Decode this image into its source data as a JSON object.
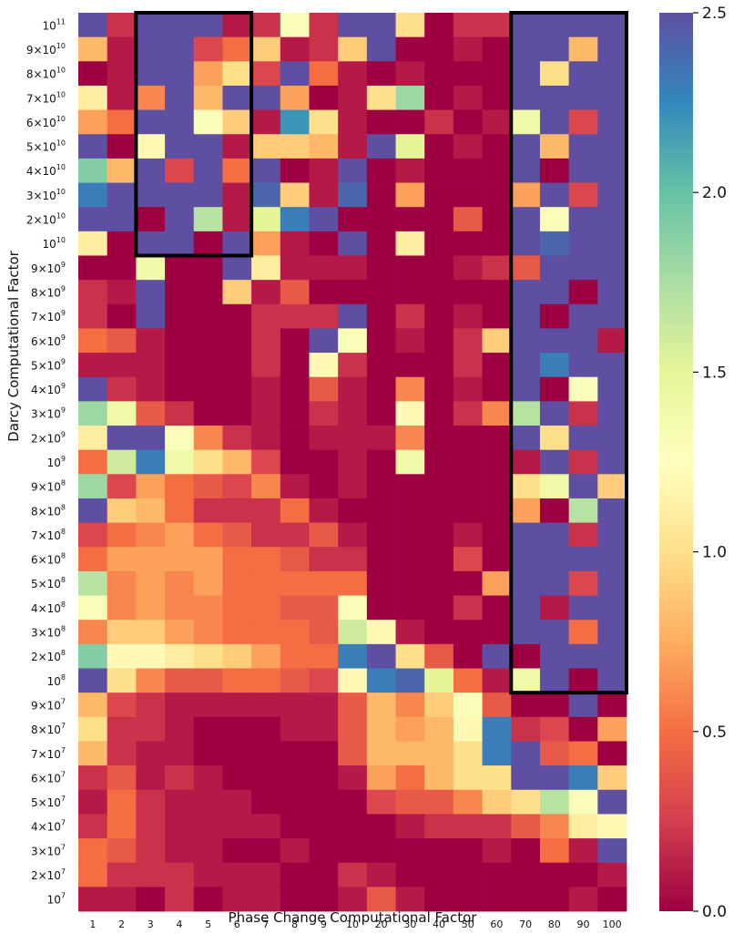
{
  "chart_data": {
    "type": "heatmap",
    "xlabel": "Phase Change Computational Factor",
    "ylabel": "Darcy Computational Factor",
    "x_categories": [
      "1",
      "2",
      "3",
      "4",
      "5",
      "6",
      "7",
      "8",
      "9",
      "10",
      "20",
      "30",
      "40",
      "50",
      "60",
      "70",
      "80",
      "90",
      "100"
    ],
    "y_categories_top_to_bottom": [
      {
        "base": "10",
        "exp": "11"
      },
      {
        "base": "9×10",
        "exp": "10"
      },
      {
        "base": "8×10",
        "exp": "10"
      },
      {
        "base": "7×10",
        "exp": "10"
      },
      {
        "base": "6×10",
        "exp": "10"
      },
      {
        "base": "5×10",
        "exp": "10"
      },
      {
        "base": "4×10",
        "exp": "10"
      },
      {
        "base": "3×10",
        "exp": "10"
      },
      {
        "base": "2×10",
        "exp": "10"
      },
      {
        "base": "10",
        "exp": "10"
      },
      {
        "base": "9×10",
        "exp": "9"
      },
      {
        "base": "8×10",
        "exp": "9"
      },
      {
        "base": "7×10",
        "exp": "9"
      },
      {
        "base": "6×10",
        "exp": "9"
      },
      {
        "base": "5×10",
        "exp": "9"
      },
      {
        "base": "4×10",
        "exp": "9"
      },
      {
        "base": "3×10",
        "exp": "9"
      },
      {
        "base": "2×10",
        "exp": "9"
      },
      {
        "base": "10",
        "exp": "9"
      },
      {
        "base": "9×10",
        "exp": "8"
      },
      {
        "base": "8×10",
        "exp": "8"
      },
      {
        "base": "7×10",
        "exp": "8"
      },
      {
        "base": "6×10",
        "exp": "8"
      },
      {
        "base": "5×10",
        "exp": "8"
      },
      {
        "base": "4×10",
        "exp": "8"
      },
      {
        "base": "3×10",
        "exp": "8"
      },
      {
        "base": "2×10",
        "exp": "8"
      },
      {
        "base": "10",
        "exp": "8"
      },
      {
        "base": "9×10",
        "exp": "7"
      },
      {
        "base": "8×10",
        "exp": "7"
      },
      {
        "base": "7×10",
        "exp": "7"
      },
      {
        "base": "6×10",
        "exp": "7"
      },
      {
        "base": "5×10",
        "exp": "7"
      },
      {
        "base": "4×10",
        "exp": "7"
      },
      {
        "base": "3×10",
        "exp": "7"
      },
      {
        "base": "2×10",
        "exp": "7"
      },
      {
        "base": "10",
        "exp": "7"
      }
    ],
    "values": [
      [
        2.5,
        0.2,
        2.5,
        2.5,
        2.5,
        0.1,
        0.2,
        1.3,
        0.2,
        2.5,
        2.5,
        1.0,
        0.0,
        0.2,
        0.2,
        2.5,
        2.5,
        2.5,
        2.5
      ],
      [
        0.8,
        0.1,
        2.5,
        2.5,
        0.3,
        0.5,
        0.9,
        0.1,
        0.2,
        0.9,
        2.5,
        0.0,
        0.0,
        0.1,
        0.0,
        2.5,
        2.5,
        0.8,
        2.5
      ],
      [
        0.0,
        0.1,
        2.5,
        2.5,
        0.7,
        1.0,
        0.3,
        2.5,
        0.5,
        0.1,
        0.0,
        0.1,
        0.0,
        0.0,
        0.0,
        2.5,
        1.0,
        2.5,
        2.5
      ],
      [
        1.1,
        0.1,
        0.6,
        2.5,
        0.8,
        2.5,
        2.5,
        0.7,
        0.0,
        0.1,
        1.0,
        1.8,
        0.0,
        0.1,
        0.0,
        2.5,
        2.5,
        2.5,
        2.5
      ],
      [
        0.7,
        0.5,
        2.5,
        2.5,
        1.3,
        0.9,
        0.1,
        2.2,
        1.0,
        0.1,
        0.0,
        0.0,
        0.2,
        0.0,
        0.1,
        1.4,
        2.5,
        0.3,
        2.5
      ],
      [
        2.5,
        0.0,
        1.2,
        2.5,
        2.5,
        0.1,
        0.9,
        0.9,
        0.8,
        0.1,
        2.5,
        1.5,
        0.0,
        0.1,
        0.0,
        2.5,
        0.8,
        2.5,
        2.5
      ],
      [
        1.9,
        0.8,
        2.5,
        0.3,
        2.5,
        0.5,
        2.5,
        0.0,
        0.1,
        2.5,
        0.0,
        0.1,
        0.0,
        0.0,
        0.0,
        2.5,
        0.0,
        2.5,
        2.5
      ],
      [
        2.3,
        2.5,
        2.5,
        2.5,
        2.5,
        0.1,
        2.4,
        0.9,
        0.1,
        2.4,
        0.0,
        0.7,
        0.0,
        0.0,
        0.0,
        0.7,
        2.5,
        0.3,
        2.5
      ],
      [
        2.5,
        2.5,
        0.0,
        2.5,
        1.7,
        0.1,
        1.5,
        2.3,
        2.5,
        0.0,
        0.0,
        0.0,
        0.0,
        0.4,
        0.0,
        2.5,
        1.3,
        2.5,
        2.5
      ],
      [
        1.1,
        0.0,
        2.5,
        2.5,
        0.0,
        2.5,
        0.7,
        0.1,
        0.0,
        2.5,
        0.0,
        1.1,
        0.0,
        0.0,
        0.0,
        2.5,
        2.4,
        2.5,
        2.5
      ],
      [
        0.0,
        0.0,
        1.4,
        0.0,
        0.0,
        2.5,
        1.1,
        0.1,
        0.1,
        0.1,
        0.0,
        0.0,
        0.0,
        0.1,
        0.2,
        0.4,
        2.5,
        2.5,
        2.5
      ],
      [
        0.2,
        0.1,
        2.5,
        0.0,
        0.0,
        0.9,
        0.1,
        0.4,
        0.0,
        0.0,
        0.0,
        0.0,
        0.0,
        0.0,
        0.0,
        2.5,
        2.5,
        0.0,
        2.5
      ],
      [
        0.2,
        0.0,
        2.5,
        0.0,
        0.0,
        0.0,
        0.2,
        0.2,
        0.2,
        2.5,
        0.0,
        0.2,
        0.0,
        0.1,
        0.0,
        2.5,
        0.0,
        2.5,
        2.5
      ],
      [
        0.5,
        0.4,
        0.1,
        0.0,
        0.0,
        0.0,
        0.2,
        0.0,
        2.5,
        1.3,
        0.0,
        0.1,
        0.0,
        0.2,
        0.9,
        2.5,
        2.5,
        2.5,
        0.1
      ],
      [
        0.1,
        0.1,
        0.1,
        0.0,
        0.0,
        0.0,
        0.2,
        0.0,
        1.2,
        0.2,
        0.0,
        0.0,
        0.0,
        0.2,
        0.0,
        2.5,
        2.3,
        2.5,
        2.5
      ],
      [
        2.5,
        0.2,
        0.1,
        0.0,
        0.0,
        0.0,
        0.1,
        0.0,
        0.4,
        0.1,
        0.0,
        0.6,
        0.0,
        0.1,
        0.0,
        2.5,
        0.0,
        1.3,
        2.5
      ],
      [
        1.8,
        1.4,
        0.4,
        0.2,
        0.0,
        0.0,
        0.1,
        0.0,
        0.2,
        0.1,
        0.0,
        1.2,
        0.0,
        0.2,
        0.6,
        1.7,
        2.5,
        0.2,
        2.5
      ],
      [
        1.1,
        2.5,
        2.5,
        1.3,
        0.6,
        0.2,
        0.1,
        0.0,
        0.1,
        0.1,
        0.1,
        0.6,
        0.0,
        0.0,
        0.0,
        2.5,
        1.0,
        2.5,
        2.5
      ],
      [
        0.5,
        1.6,
        2.3,
        1.4,
        1.0,
        0.8,
        0.3,
        0.0,
        0.0,
        0.1,
        0.0,
        1.4,
        0.0,
        0.0,
        0.0,
        0.1,
        2.5,
        0.2,
        2.5
      ],
      [
        1.8,
        0.3,
        0.7,
        0.5,
        0.4,
        0.3,
        0.6,
        0.1,
        0.0,
        0.1,
        0.0,
        0.0,
        0.0,
        0.0,
        0.0,
        1.0,
        1.4,
        2.5,
        0.9
      ],
      [
        2.5,
        0.9,
        0.8,
        0.5,
        0.2,
        0.2,
        0.2,
        0.5,
        0.1,
        0.0,
        0.0,
        0.0,
        0.0,
        0.0,
        0.0,
        0.7,
        0.0,
        1.7,
        2.5
      ],
      [
        0.3,
        0.5,
        0.6,
        0.7,
        0.5,
        0.4,
        0.2,
        0.2,
        0.4,
        0.1,
        0.0,
        0.0,
        0.0,
        0.1,
        0.0,
        2.5,
        2.5,
        0.2,
        2.5
      ],
      [
        0.5,
        0.7,
        0.7,
        0.7,
        0.7,
        0.5,
        0.5,
        0.4,
        0.2,
        0.2,
        0.0,
        0.0,
        0.0,
        0.3,
        0.0,
        2.5,
        2.5,
        2.5,
        2.5
      ],
      [
        1.7,
        0.6,
        0.7,
        0.6,
        0.7,
        0.5,
        0.5,
        0.5,
        0.5,
        0.5,
        0.0,
        0.0,
        0.0,
        0.0,
        0.7,
        2.5,
        2.5,
        0.3,
        2.5
      ],
      [
        1.3,
        0.6,
        0.7,
        0.6,
        0.6,
        0.5,
        0.5,
        0.4,
        0.4,
        1.3,
        0.0,
        0.0,
        0.0,
        0.2,
        0.0,
        2.5,
        0.1,
        2.5,
        2.5
      ],
      [
        0.6,
        0.9,
        0.9,
        0.7,
        0.6,
        0.5,
        0.5,
        0.5,
        0.4,
        1.6,
        1.2,
        0.1,
        0.0,
        0.0,
        0.0,
        2.5,
        2.5,
        0.5,
        2.5
      ],
      [
        1.9,
        1.2,
        1.2,
        1.1,
        1.0,
        0.9,
        0.7,
        0.5,
        0.5,
        2.3,
        2.5,
        1.0,
        0.4,
        0.0,
        2.5,
        0.0,
        2.5,
        2.5,
        2.5
      ],
      [
        2.5,
        1.0,
        0.6,
        0.4,
        0.4,
        0.5,
        0.5,
        0.4,
        0.3,
        1.2,
        2.3,
        2.4,
        1.5,
        0.5,
        0.1,
        1.4,
        2.5,
        0.0,
        2.5
      ],
      [
        0.8,
        0.3,
        0.2,
        0.1,
        0.1,
        0.1,
        0.1,
        0.1,
        0.1,
        0.4,
        0.8,
        0.6,
        0.9,
        1.3,
        0.4,
        0.0,
        0.0,
        2.5,
        0.0
      ],
      [
        1.0,
        0.2,
        0.2,
        0.1,
        0.0,
        0.0,
        0.0,
        0.1,
        0.1,
        0.4,
        0.8,
        0.7,
        0.8,
        1.2,
        2.3,
        0.2,
        0.3,
        0.0,
        0.7
      ],
      [
        0.8,
        0.2,
        0.1,
        0.1,
        0.0,
        0.0,
        0.0,
        0.0,
        0.0,
        0.4,
        0.8,
        0.8,
        0.8,
        1.0,
        2.3,
        2.5,
        0.4,
        0.5,
        0.0
      ],
      [
        0.2,
        0.4,
        0.1,
        0.2,
        0.1,
        0.0,
        0.0,
        0.0,
        0.0,
        0.1,
        0.7,
        0.5,
        0.8,
        1.0,
        1.0,
        2.5,
        2.5,
        2.3,
        0.9
      ],
      [
        0.1,
        0.5,
        0.2,
        0.1,
        0.1,
        0.1,
        0.0,
        0.0,
        0.0,
        0.0,
        0.3,
        0.4,
        0.4,
        0.6,
        0.9,
        1.0,
        1.7,
        1.3,
        2.5
      ],
      [
        0.2,
        0.5,
        0.2,
        0.1,
        0.1,
        0.1,
        0.1,
        0.0,
        0.0,
        0.0,
        0.0,
        0.1,
        0.2,
        0.2,
        0.2,
        0.4,
        0.6,
        1.1,
        1.2
      ],
      [
        0.5,
        0.4,
        0.2,
        0.1,
        0.1,
        0.0,
        0.0,
        0.1,
        0.0,
        0.0,
        0.0,
        0.0,
        0.0,
        0.0,
        0.1,
        0.0,
        0.5,
        0.1,
        2.5
      ],
      [
        0.5,
        0.2,
        0.2,
        0.2,
        0.1,
        0.1,
        0.1,
        0.0,
        0.0,
        0.2,
        0.1,
        0.0,
        0.0,
        0.0,
        0.0,
        0.0,
        0.0,
        0.0,
        0.1
      ],
      [
        0.1,
        0.1,
        0.0,
        0.2,
        0.0,
        0.1,
        0.1,
        0.0,
        0.0,
        0.1,
        0.4,
        0.1,
        0.0,
        0.0,
        0.0,
        0.0,
        0.0,
        0.1,
        0.0
      ]
    ],
    "colorbar": {
      "min": 0.0,
      "max": 2.5,
      "ticks": [
        "0.0",
        "0.5",
        "1.0",
        "1.5",
        "2.0",
        "2.5"
      ],
      "colormap": "Spectral",
      "colormap_stops": [
        "#9e0142",
        "#d53e4f",
        "#f46d43",
        "#fdae61",
        "#fee08b",
        "#ffffbf",
        "#e6f598",
        "#abdda4",
        "#66c2a5",
        "#3288bd",
        "#5e4fa2"
      ]
    },
    "highlight_boxes": [
      {
        "x_from": "3",
        "x_to": "6",
        "y_from": "10^11",
        "y_to": "10^10"
      },
      {
        "x_from": "70",
        "x_to": "100",
        "y_from": "10^11",
        "y_to": "10^8"
      }
    ],
    "highlight_color": "#000000",
    "grid": false
  }
}
